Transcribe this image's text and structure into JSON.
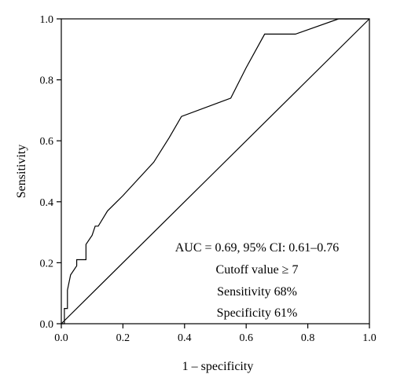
{
  "chart_data": {
    "type": "line",
    "xlabel": "1 – specificity",
    "ylabel": "Sensitivity",
    "xlim": [
      0.0,
      1.0
    ],
    "ylim": [
      0.0,
      1.0
    ],
    "xticks": [
      "0.0",
      "0.2",
      "0.4",
      "0.6",
      "0.8",
      "1.0"
    ],
    "yticks": [
      "0.0",
      "0.2",
      "0.4",
      "0.6",
      "0.8",
      "1.0"
    ],
    "grid": false,
    "legend": "none",
    "series": [
      {
        "role": "roc-curve",
        "x": [
          0.0,
          0.01,
          0.01,
          0.02,
          0.02,
          0.03,
          0.05,
          0.05,
          0.08,
          0.08,
          0.1,
          0.11,
          0.12,
          0.15,
          0.2,
          0.3,
          0.35,
          0.39,
          0.55,
          0.6,
          0.66,
          0.76,
          0.9,
          1.0
        ],
        "y": [
          0.0,
          0.0,
          0.05,
          0.05,
          0.11,
          0.16,
          0.19,
          0.21,
          0.21,
          0.26,
          0.29,
          0.32,
          0.32,
          0.37,
          0.42,
          0.53,
          0.61,
          0.68,
          0.74,
          0.84,
          0.95,
          0.95,
          1.0,
          1.0
        ]
      },
      {
        "role": "reference-diagonal",
        "x": [
          0.0,
          1.0
        ],
        "y": [
          0.0,
          1.0
        ]
      }
    ],
    "annotations": [
      "AUC = 0.69, 95% CI: 0.61–0.76",
      "Cutoff value ≥ 7",
      "Sensitivity 68%",
      "Specificity 61%"
    ],
    "line_color": "#000000"
  }
}
